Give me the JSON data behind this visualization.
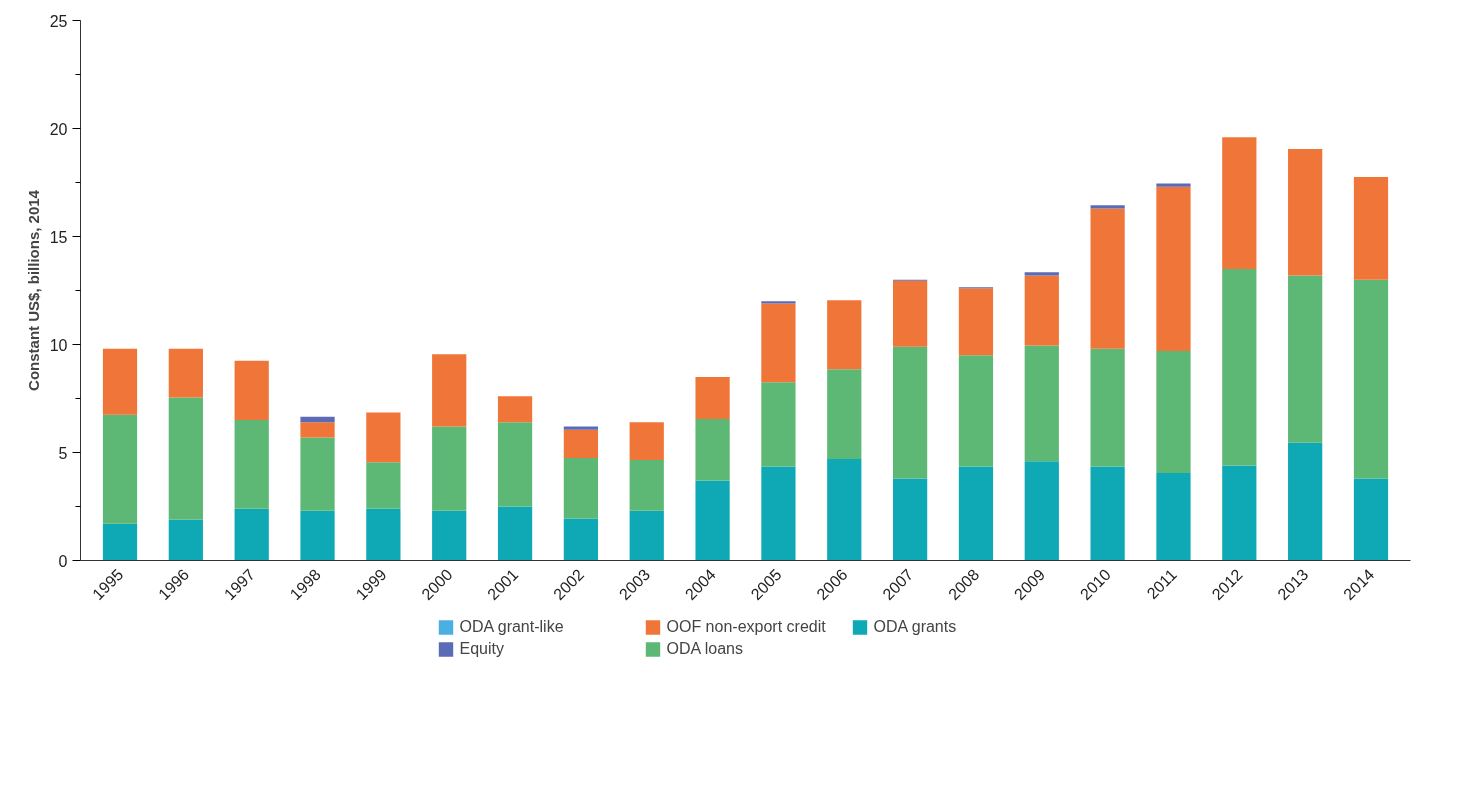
{
  "chart_data": {
    "type": "bar",
    "stacked": true,
    "ylabel": "Constant US$, billions, 2014",
    "categories": [
      "1995",
      "1996",
      "1997",
      "1998",
      "1999",
      "2000",
      "2001",
      "2002",
      "2003",
      "2004",
      "2005",
      "2006",
      "2007",
      "2008",
      "2009",
      "2010",
      "2011",
      "2012",
      "2013",
      "2014"
    ],
    "ylim": [
      0,
      25
    ],
    "yticks": [
      0,
      5,
      10,
      15,
      20,
      25
    ],
    "grid": false,
    "legend": "bottom",
    "series": [
      {
        "name": "ODA grants",
        "color": "#0fa9b5",
        "values": [
          1.7,
          1.9,
          2.4,
          2.3,
          2.4,
          2.3,
          2.5,
          1.95,
          2.3,
          3.7,
          4.35,
          4.7,
          3.8,
          4.35,
          4.6,
          4.35,
          4.05,
          4.4,
          5.45,
          3.8
        ]
      },
      {
        "name": "ODA loans",
        "color": "#5cb874",
        "values": [
          5.05,
          5.65,
          4.1,
          3.4,
          2.15,
          3.9,
          3.9,
          2.8,
          2.35,
          2.85,
          3.9,
          4.15,
          6.1,
          5.15,
          5.35,
          5.45,
          5.65,
          9.1,
          7.75,
          9.2
        ]
      },
      {
        "name": "OOF non-export credit",
        "color": "#f07538",
        "values": [
          3.05,
          2.25,
          2.75,
          0.7,
          2.3,
          3.35,
          1.2,
          1.3,
          1.75,
          1.95,
          3.65,
          3.2,
          3.05,
          3.1,
          3.25,
          6.5,
          7.6,
          6.1,
          5.85,
          4.75
        ]
      },
      {
        "name": "Equity",
        "color": "#5b6bb5",
        "values": [
          0,
          0,
          0,
          0.25,
          0,
          0,
          0,
          0.15,
          0,
          0,
          0.1,
          0,
          0.05,
          0.05,
          0.15,
          0.15,
          0.15,
          0,
          0,
          0
        ]
      },
      {
        "name": "ODA grant-like",
        "color": "#4bafe3",
        "values": [
          0,
          0,
          0,
          0,
          0,
          0,
          0,
          0,
          0,
          0,
          0,
          0,
          0,
          0,
          0,
          0,
          0,
          0,
          0,
          0
        ]
      }
    ]
  }
}
